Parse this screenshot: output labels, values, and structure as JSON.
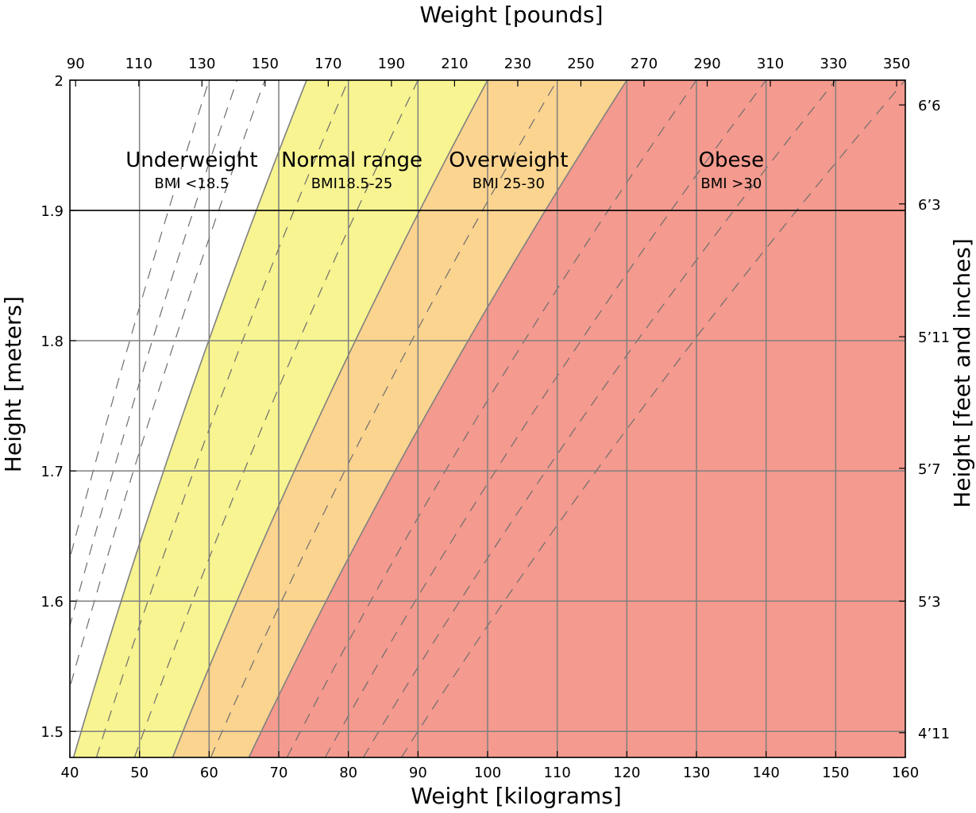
{
  "chart_data": {
    "type": "area",
    "xlabel": "Weight [kilograms]",
    "xlabel_top": "Weight [pounds]",
    "ylabel": "Height [meters]",
    "ylabel_right": "Height [feet and inches]",
    "xlim": [
      40,
      160
    ],
    "ylim": [
      1.48,
      2.0
    ],
    "grid": true,
    "x_ticks": [
      40,
      50,
      60,
      70,
      80,
      90,
      100,
      110,
      120,
      130,
      140,
      150,
      160
    ],
    "y_ticks": [
      1.5,
      1.6,
      1.7,
      1.8,
      1.9,
      2
    ],
    "pound_ticks": [
      90,
      110,
      130,
      150,
      170,
      190,
      210,
      230,
      250,
      270,
      290,
      310,
      330,
      350
    ],
    "feet_ticks": [
      {
        "label": "4’11",
        "m": 1.499
      },
      {
        "label": "5’3",
        "m": 1.6
      },
      {
        "label": "5’7",
        "m": 1.702
      },
      {
        "label": "5’11",
        "m": 1.803
      },
      {
        "label": "6’3",
        "m": 1.905
      },
      {
        "label": "6’6",
        "m": 1.981
      }
    ],
    "bmi_boundaries": [
      18.5,
      25,
      30
    ],
    "bmi_dashed_lines": [
      15,
      16,
      17,
      20,
      22.5,
      27.5,
      32.5,
      35,
      37.5,
      40
    ],
    "categories": [
      {
        "name": "Underweight",
        "sub": "BMI <18.5",
        "color": "#ffffff",
        "label_x": 57.5,
        "label_y": 1.93
      },
      {
        "name": "Normal range",
        "sub": "BMI18.5-25",
        "color": "#f7f491",
        "label_x": 80.5,
        "label_y": 1.93
      },
      {
        "name": "Overweight",
        "sub": "BMI 25-30",
        "color": "#fbd490",
        "label_x": 103,
        "label_y": 1.93
      },
      {
        "name": "Obese",
        "sub": "BMI >30",
        "color": "#f49a8e",
        "label_x": 135,
        "label_y": 1.93
      }
    ]
  }
}
